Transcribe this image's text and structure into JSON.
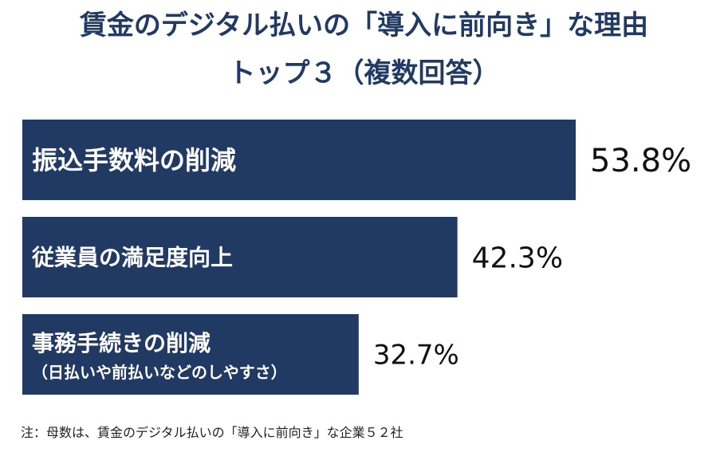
{
  "title": {
    "line1": "賃金のデジタル払いの「導入に前向き」な理由",
    "line2": "トップ３（複数回答）"
  },
  "colors": {
    "bar": "#213a64",
    "title": "#213a64",
    "bar_text": "#ffffff",
    "value_text": "#111111"
  },
  "chart_data": {
    "type": "bar",
    "orientation": "horizontal",
    "categories": [
      [
        "振込手数料の削減"
      ],
      [
        "従業員の満足度向上"
      ],
      [
        "事務手続きの削減",
        "（日払いや前払いなどのしやすさ）"
      ]
    ],
    "values": [
      53.8,
      42.3,
      32.7
    ],
    "value_labels": [
      "53.8%",
      "42.3%",
      "32.7%"
    ],
    "unit": "%",
    "xlim": [
      0,
      70
    ],
    "grid": false,
    "legend": "none"
  },
  "footnote": "注：母数は、賃金のデジタル払いの「導入に前向き」な企業５２社"
}
